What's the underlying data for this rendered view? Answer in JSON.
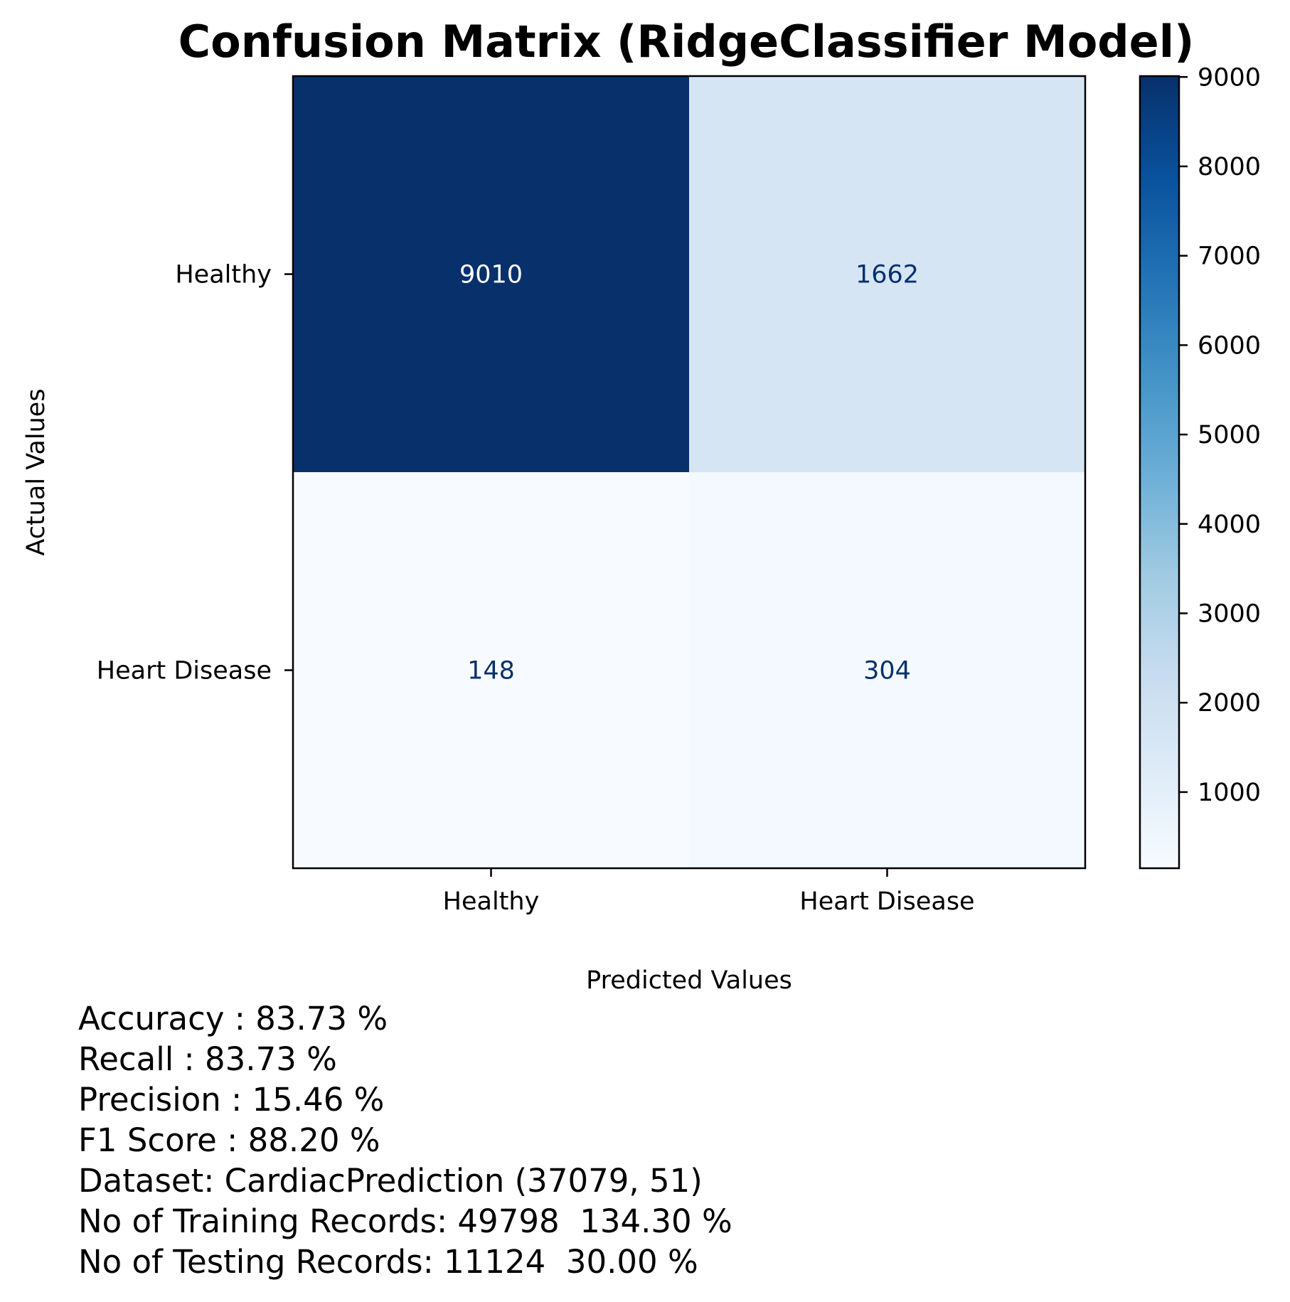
{
  "chart_data": {
    "type": "heatmap",
    "title": "Confusion Matrix (RidgeClassifier Model)",
    "xlabel": "Predicted Values",
    "ylabel": "Actual Values",
    "x_categories": [
      "Healthy",
      "Heart Disease"
    ],
    "y_categories": [
      "Healthy",
      "Heart Disease"
    ],
    "matrix": [
      [
        9010,
        1662
      ],
      [
        148,
        304
      ]
    ],
    "colormap": "Blues",
    "colorbar": {
      "min": 148,
      "max": 9010,
      "ticks": [
        1000,
        2000,
        3000,
        4000,
        5000,
        6000,
        7000,
        8000,
        9000
      ]
    },
    "grid": false
  },
  "metrics": [
    "Accuracy : 83.73 %",
    "Recall : 83.73 %",
    "Precision : 15.46 %",
    "F1 Score : 88.20 %",
    "Dataset: CardiacPrediction (37079, 51)",
    "No of Training Records: 49798  134.30 %",
    "No of Testing Records: 11124  30.00 %"
  ],
  "colors": {
    "text_dark": "#08306b",
    "text_light": "#ffffff",
    "axis": "#000000"
  }
}
